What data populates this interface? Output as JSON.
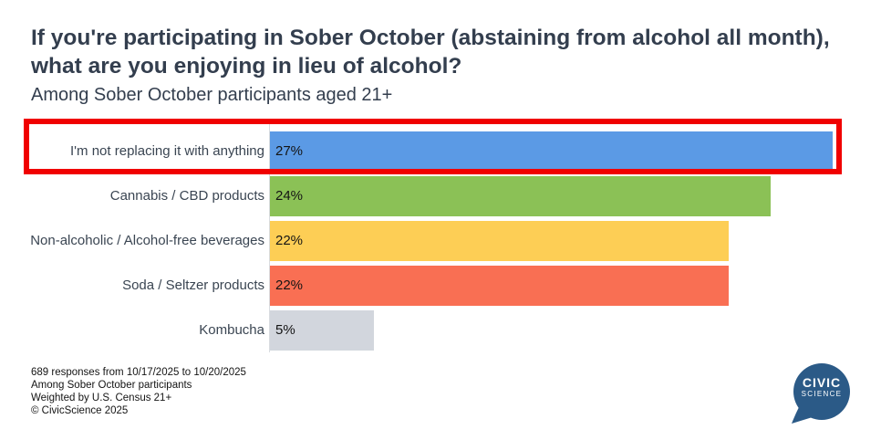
{
  "header": {
    "title": "If you're participating in Sober October (abstaining from alcohol all month), what are you enjoying in lieu of alcohol?",
    "subtitle": "Among Sober October participants aged 21+"
  },
  "chart_data": {
    "type": "bar",
    "orientation": "horizontal",
    "title": "If you're participating in Sober October (abstaining from alcohol all month), what are you enjoying in lieu of alcohol?",
    "subtitle": "Among Sober October participants aged 21+",
    "categories": [
      "I'm not replacing it with anything",
      "Cannabis / CBD products",
      "Non-alcoholic / Alcohol-free beverages",
      "Soda / Seltzer products",
      "Kombucha"
    ],
    "values": [
      27,
      24,
      22,
      22,
      5
    ],
    "value_labels": [
      "27%",
      "24%",
      "22%",
      "22%",
      "5%"
    ],
    "unit": "%",
    "bar_colors": [
      "#5B9AE5",
      "#8BC156",
      "#FDCE55",
      "#F96F53",
      "#D2D6DD"
    ],
    "xlim": [
      0,
      28
    ],
    "grid": false,
    "legend": false,
    "highlighted_index": 0,
    "highlight_color": "#F00000"
  },
  "footer": {
    "notes": [
      "689 responses from 10/17/2025 to 10/20/2025",
      "Among Sober October participants",
      "Weighted by U.S. Census 21+",
      "© CivicScience 2025"
    ]
  },
  "logo": {
    "line1": "CIVIC",
    "line2": "SCIENCE",
    "color": "#2B5A87"
  }
}
